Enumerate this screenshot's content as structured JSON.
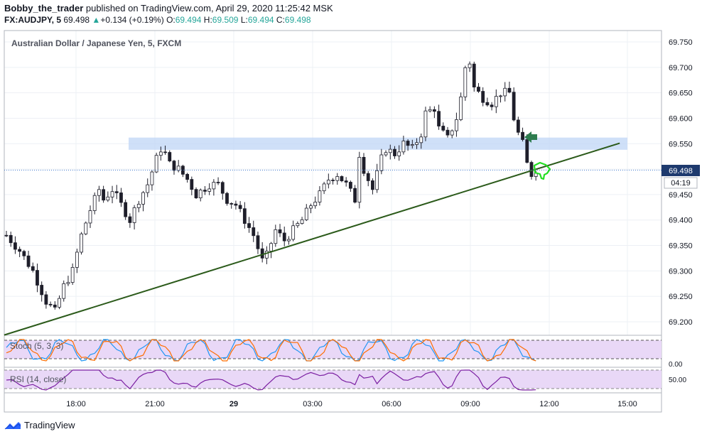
{
  "header": {
    "author": "Bobby_the_trader",
    "published_text": " published on TradingView.com, April 29, 2020 11:25:42 MSK",
    "symbol": "FX:AUDJPY, 5",
    "last": "69.498",
    "change": "+0.134 (+0.19%)",
    "o_label": "O:",
    "o_value": "69.494",
    "h_label": "H:",
    "h_value": "69.509",
    "l_label": "L:",
    "l_value": "69.494",
    "c_label": "C:",
    "c_value": "69.498"
  },
  "chart_data": {
    "type": "candlestick",
    "title": "Australian Dollar / Japanese Yen, 5, FXCM",
    "y_ticks": [
      "69.750",
      "69.700",
      "69.650",
      "69.600",
      "69.550",
      "69.500",
      "69.450",
      "69.400",
      "69.350",
      "69.300",
      "69.250",
      "69.200"
    ],
    "ylim": [
      69.17,
      69.79
    ],
    "x_ticks": [
      "18:00",
      "21:00",
      "29",
      "03:00",
      "06:00",
      "09:00",
      "12:00",
      "15:00"
    ],
    "current_price_label": "69.498",
    "countdown_label": "04:19",
    "grid": true,
    "price_path": [
      [
        0,
        69.37
      ],
      [
        3,
        69.34
      ],
      [
        6,
        69.3
      ],
      [
        9,
        69.24
      ],
      [
        11,
        69.22
      ],
      [
        13,
        69.27
      ],
      [
        15,
        69.3
      ],
      [
        17,
        69.37
      ],
      [
        19,
        69.42
      ],
      [
        21,
        69.46
      ],
      [
        22,
        69.44
      ],
      [
        24,
        69.46
      ],
      [
        26,
        69.43
      ],
      [
        28,
        69.4
      ],
      [
        30,
        69.44
      ],
      [
        32,
        69.47
      ],
      [
        34,
        69.52
      ],
      [
        35,
        69.54
      ],
      [
        36,
        69.53
      ],
      [
        37,
        69.51
      ],
      [
        39,
        69.5
      ],
      [
        41,
        69.48
      ],
      [
        43,
        69.45
      ],
      [
        46,
        69.47
      ],
      [
        48,
        69.47
      ],
      [
        50,
        69.44
      ],
      [
        52,
        69.43
      ],
      [
        54,
        69.4
      ],
      [
        56,
        69.37
      ],
      [
        58,
        69.32
      ],
      [
        59,
        69.33
      ],
      [
        61,
        69.38
      ],
      [
        63,
        69.36
      ],
      [
        65,
        69.38
      ],
      [
        67,
        69.4
      ],
      [
        69,
        69.43
      ],
      [
        71,
        69.45
      ],
      [
        73,
        69.48
      ],
      [
        75,
        69.49
      ],
      [
        77,
        69.47
      ],
      [
        79,
        69.44
      ],
      [
        80,
        69.53
      ],
      [
        81,
        69.5
      ],
      [
        83,
        69.46
      ],
      [
        85,
        69.52
      ],
      [
        86,
        69.54
      ],
      [
        88,
        69.53
      ],
      [
        90,
        69.55
      ],
      [
        92,
        69.54
      ],
      [
        94,
        69.57
      ],
      [
        95,
        69.61
      ],
      [
        97,
        69.62
      ],
      [
        98,
        69.58
      ],
      [
        100,
        69.56
      ],
      [
        102,
        69.6
      ],
      [
        103,
        69.64
      ],
      [
        104,
        69.7
      ],
      [
        105,
        69.71
      ],
      [
        106,
        69.66
      ],
      [
        108,
        69.64
      ],
      [
        110,
        69.63
      ],
      [
        112,
        69.65
      ],
      [
        114,
        69.65
      ],
      [
        115,
        69.6
      ],
      [
        116,
        69.57
      ],
      [
        117,
        69.55
      ],
      [
        118,
        69.51
      ],
      [
        119,
        69.49
      ],
      [
        120,
        69.5
      ]
    ],
    "support_line": {
      "from": [
        -0.5,
        69.174
      ],
      "to": [
        139,
        69.551
      ]
    },
    "resistance_zone": [
      69.538,
      69.562
    ],
    "indicators": [
      {
        "name": "Stoch (5, 3, 3)",
        "axis_label": "0.00"
      },
      {
        "name": "RSI (14, close)",
        "axis_label": "50.00"
      }
    ]
  },
  "footer": {
    "brand": "TradingView"
  },
  "colors": {
    "up": "#26a69a",
    "candle": "#1e1e2a",
    "support": "#2b5a1a",
    "zone": "#bfd6f6",
    "arrow": "#2e7d4f",
    "hand": "#22dd22"
  }
}
